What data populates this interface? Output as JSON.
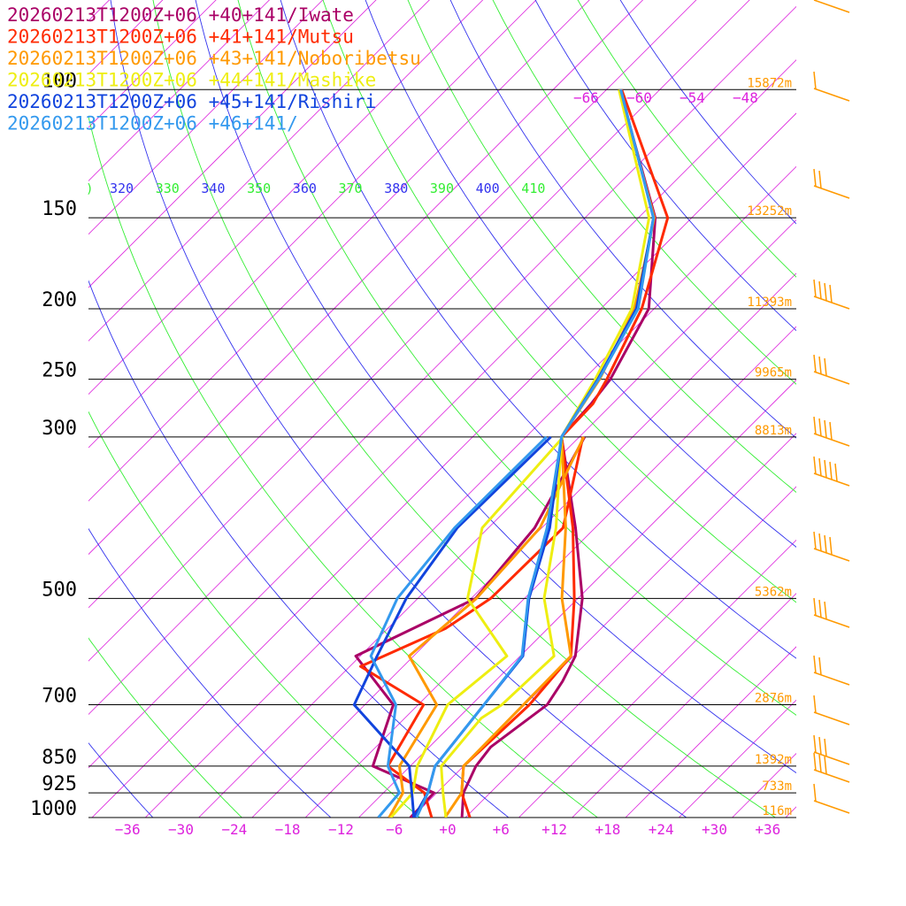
{
  "chart_data": {
    "type": "line",
    "legend": {
      "placement": "top-left",
      "entries": [
        {
          "label": "20260213T1200Z+06 +40+141/Iwate",
          "color": "#aa0066"
        },
        {
          "label": "20260213T1200Z+06 +41+141/Mutsu",
          "color": "#ff2a00"
        },
        {
          "label": "20260213T1200Z+06 +43+141/Noboribetsu",
          "color": "#ff9900"
        },
        {
          "label": "20260213T1200Z+06 +44+141/Mashike",
          "color": "#eeee11"
        },
        {
          "label": "20260213T1200Z+06 +45+141/Rishiri",
          "color": "#1144dd"
        },
        {
          "label": "20260213T1200Z+06 +46+141/",
          "color": "#3399ee"
        }
      ]
    },
    "pressure_levels": [
      {
        "p": 100,
        "label": "100",
        "height": "15872m"
      },
      {
        "p": 150,
        "label": "150",
        "height": "13252m"
      },
      {
        "p": 200,
        "label": "200",
        "height": "11393m"
      },
      {
        "p": 250,
        "label": "250",
        "height": "9965m"
      },
      {
        "p": 300,
        "label": "300",
        "height": "8813m"
      },
      {
        "p": 500,
        "label": "500",
        "height": "5362m"
      },
      {
        "p": 700,
        "label": "700",
        "height": "2876m"
      },
      {
        "p": 850,
        "label": "850",
        "height": "1392m"
      },
      {
        "p": 925,
        "label": "925",
        "height": "733m"
      },
      {
        "p": 1000,
        "label": "1000",
        "height": "116m"
      }
    ],
    "x_ticks": [
      "−36",
      "−30",
      "−24",
      "−18",
      "−12",
      "−6",
      "+0",
      "+6",
      "+12",
      "+18",
      "+24",
      "+30",
      "+36"
    ],
    "x_tick_values": [
      -36,
      -30,
      -24,
      -18,
      -12,
      -6,
      0,
      6,
      12,
      18,
      24,
      30,
      36
    ],
    "isotherm_labels_top": [
      "−66",
      "−60",
      "−54",
      "−48"
    ],
    "theta_labels": [
      "320",
      "330",
      "340",
      "350",
      "360",
      "370",
      "380",
      "390",
      "400",
      "410"
    ],
    "theta_colors": [
      "#3333ee",
      "#33ee33",
      "#3333ee",
      "#33ee33",
      "#3333ee",
      "#33ee33",
      "#3333ee",
      "#33ee33",
      "#3333ee",
      "#33ee33"
    ],
    "colors": {
      "isotherm": "#dd22dd",
      "isobar": "#000000",
      "height_label": "#ff9900",
      "x_tick": "#dd22dd",
      "wind_barb": "#ff9900"
    },
    "series": [
      {
        "name": "20260213T1200Z+06 +40+141/Iwate",
        "temperature": [
          [
            1000,
            1.6
          ],
          [
            925,
            -1.0
          ],
          [
            850,
            -2.6
          ],
          [
            800,
            -3.1
          ],
          [
            700,
            -1.5
          ],
          [
            650,
            -2.4
          ],
          [
            600,
            -3.8
          ],
          [
            500,
            -9.5
          ],
          [
            400,
            -18.2
          ],
          [
            300,
            -30.0
          ],
          [
            270,
            -30.4
          ],
          [
            250,
            -31.0
          ],
          [
            200,
            -34.6
          ],
          [
            150,
            -44.1
          ],
          [
            100,
            -62.5
          ]
        ],
        "dewpoint": [
          [
            1000,
            -4.2
          ],
          [
            925,
            -4.3
          ],
          [
            850,
            -14.2
          ],
          [
            700,
            -18.8
          ],
          [
            600,
            -28.5
          ],
          [
            500,
            -21.5
          ],
          [
            400,
            -22.8
          ],
          [
            300,
            -27.4
          ]
        ]
      },
      {
        "name": "20260213T1200Z+06 +41+141/Mutsu",
        "temperature": [
          [
            1000,
            2.5
          ],
          [
            925,
            -1.2
          ],
          [
            850,
            -4.0
          ],
          [
            700,
            -3.5
          ],
          [
            600,
            -4.3
          ],
          [
            500,
            -10.4
          ],
          [
            400,
            -18.5
          ],
          [
            300,
            -30.0
          ],
          [
            270,
            -30.2
          ],
          [
            250,
            -31.4
          ],
          [
            200,
            -35.4
          ],
          [
            150,
            -42.7
          ],
          [
            100,
            -62.3
          ]
        ],
        "dewpoint": [
          [
            1000,
            -1.8
          ],
          [
            925,
            -5.4
          ],
          [
            850,
            -12.5
          ],
          [
            700,
            -15.4
          ],
          [
            620,
            -26.8
          ],
          [
            550,
            -21.5
          ],
          [
            500,
            -19.8
          ],
          [
            400,
            -19.6
          ],
          [
            300,
            -27.6
          ]
        ]
      },
      {
        "name": "20260213T1200Z+06 +43+141/Noboribetsu",
        "temperature": [
          [
            1000,
            -0.3
          ],
          [
            925,
            -1.2
          ],
          [
            850,
            -4.0
          ],
          [
            600,
            -4.3
          ],
          [
            500,
            -11.8
          ],
          [
            400,
            -19.3
          ],
          [
            300,
            -30.0
          ],
          [
            250,
            -32.2
          ],
          [
            200,
            -36.2
          ],
          [
            150,
            -44.2
          ],
          [
            100,
            -62.5
          ]
        ],
        "dewpoint": [
          [
            1000,
            -6.6
          ],
          [
            925,
            -7.8
          ],
          [
            850,
            -11.2
          ],
          [
            700,
            -13.9
          ],
          [
            600,
            -22.5
          ],
          [
            500,
            -21.4
          ],
          [
            400,
            -22.2
          ],
          [
            300,
            -27.5
          ]
        ]
      },
      {
        "name": "20260213T1200Z+06 +44+141/Mashike",
        "temperature": [
          [
            1000,
            -0.2
          ],
          [
            925,
            -3.3
          ],
          [
            850,
            -6.5
          ],
          [
            730,
            -7.4
          ],
          [
            700,
            -6.6
          ],
          [
            600,
            -6.2
          ],
          [
            500,
            -13.8
          ],
          [
            400,
            -20.4
          ],
          [
            300,
            -30.0
          ],
          [
            250,
            -32.7
          ],
          [
            200,
            -36.5
          ],
          [
            150,
            -44.8
          ],
          [
            100,
            -62.6
          ]
        ],
        "dewpoint": [
          [
            1000,
            -6.4
          ],
          [
            925,
            -6.7
          ],
          [
            850,
            -9.2
          ],
          [
            700,
            -12.7
          ],
          [
            600,
            -11.5
          ],
          [
            500,
            -22.4
          ],
          [
            400,
            -28.7
          ],
          [
            300,
            -29.8
          ]
        ]
      },
      {
        "name": "20260213T1200Z+06 +45+141/Rishiri",
        "temperature": [
          [
            1000,
            -3.8
          ],
          [
            925,
            -5.0
          ],
          [
            850,
            -7.2
          ],
          [
            700,
            -8.6
          ],
          [
            600,
            -9.7
          ],
          [
            500,
            -15.5
          ],
          [
            400,
            -21.1
          ],
          [
            300,
            -30.0
          ],
          [
            250,
            -32.4
          ],
          [
            200,
            -36.0
          ],
          [
            150,
            -44.3
          ],
          [
            100,
            -62.4
          ]
        ],
        "dewpoint": [
          [
            1000,
            -3.8
          ],
          [
            925,
            -6.8
          ],
          [
            850,
            -10.1
          ],
          [
            700,
            -23.2
          ],
          [
            600,
            -26.1
          ],
          [
            500,
            -29.3
          ],
          [
            400,
            -31.5
          ],
          [
            300,
            -31.2
          ]
        ]
      },
      {
        "name": "20260213T1200Z+06 +46+141/",
        "temperature": [
          [
            1000,
            -3.5
          ],
          [
            925,
            -5.0
          ],
          [
            850,
            -7.2
          ],
          [
            700,
            -8.6
          ],
          [
            600,
            -9.8
          ],
          [
            500,
            -15.6
          ],
          [
            400,
            -21.4
          ],
          [
            300,
            -30.0
          ],
          [
            250,
            -32.3
          ],
          [
            200,
            -35.8
          ],
          [
            150,
            -44.3
          ],
          [
            100,
            -62.4
          ]
        ],
        "dewpoint": [
          [
            1000,
            -7.8
          ],
          [
            925,
            -8.2
          ],
          [
            850,
            -12.5
          ],
          [
            700,
            -18.5
          ],
          [
            600,
            -26.8
          ],
          [
            500,
            -30.3
          ],
          [
            400,
            -31.8
          ],
          [
            300,
            -31.7
          ]
        ]
      }
    ]
  }
}
